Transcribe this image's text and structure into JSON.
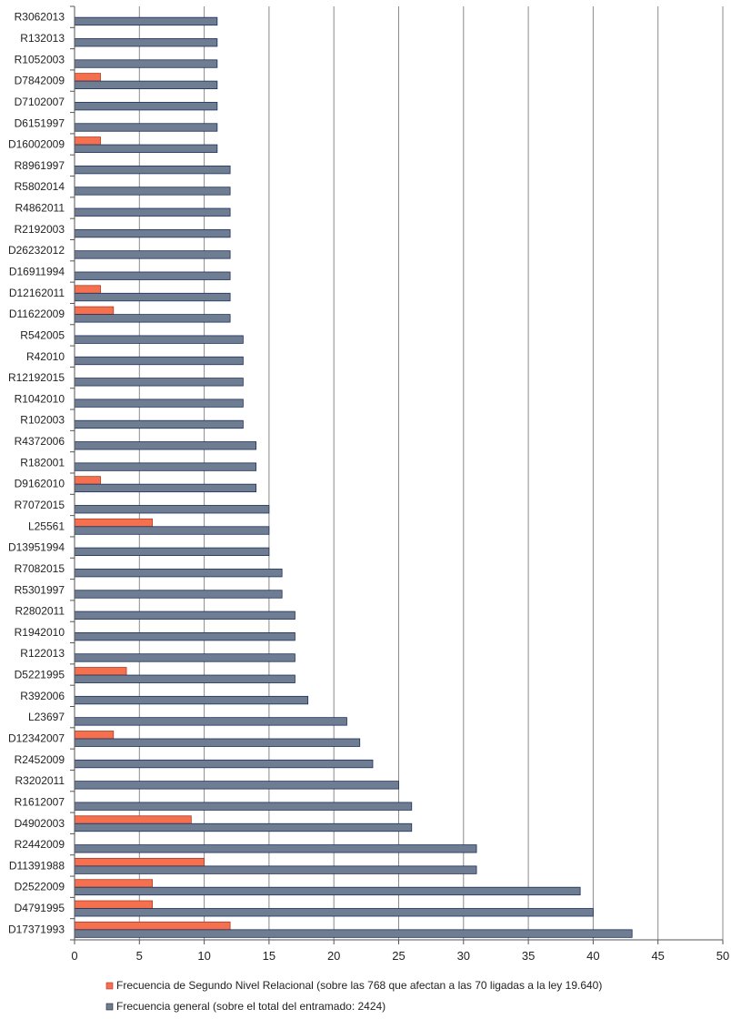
{
  "chart_data": {
    "type": "bar",
    "orientation": "horizontal",
    "title": "",
    "xlabel": "",
    "ylabel": "",
    "xlim": [
      0,
      50
    ],
    "xticks": [
      0,
      5,
      10,
      15,
      20,
      25,
      30,
      35,
      40,
      45,
      50
    ],
    "grid": true,
    "legend_position": "bottom",
    "categories": [
      "R3062013",
      "R132013",
      "R1052003",
      "D7842009",
      "D7102007",
      "D6151997",
      "D16002009",
      "R8961997",
      "R5802014",
      "R4862011",
      "R2192003",
      "D26232012",
      "D16911994",
      "D12162011",
      "D11622009",
      "R542005",
      "R42010",
      "R12192015",
      "R1042010",
      "R102003",
      "R4372006",
      "R182001",
      "D9162010",
      "R7072015",
      "L25561",
      "D13951994",
      "R7082015",
      "R5301997",
      "R2802011",
      "R1942010",
      "R122013",
      "D5221995",
      "R392006",
      "L23697",
      "D12342007",
      "R2452009",
      "R3202011",
      "R1612007",
      "D4902003",
      "R2442009",
      "D11391988",
      "D2522009",
      "D4791995",
      "D17371993"
    ],
    "series": [
      {
        "name": "Frecuencia de Segundo Nivel Relacional (sobre las 768 que afectan a las 70 ligadas a la  ley 19.640)",
        "color": "#f5704e",
        "values": [
          0,
          0,
          0,
          2,
          0,
          0,
          2,
          0,
          0,
          0,
          0,
          0,
          0,
          2,
          3,
          0,
          0,
          0,
          0,
          0,
          0,
          0,
          2,
          0,
          6,
          0,
          0,
          0,
          0,
          0,
          0,
          4,
          0,
          0,
          3,
          0,
          0,
          0,
          9,
          0,
          10,
          6,
          6,
          12
        ]
      },
      {
        "name": "Frecuencia  general (sobre el total del entramado: 2424)",
        "color": "#6e7d92",
        "values": [
          11,
          11,
          11,
          11,
          11,
          11,
          11,
          12,
          12,
          12,
          12,
          12,
          12,
          12,
          12,
          13,
          13,
          13,
          13,
          13,
          14,
          14,
          14,
          15,
          15,
          15,
          16,
          16,
          17,
          17,
          17,
          17,
          18,
          21,
          22,
          23,
          25,
          26,
          26,
          31,
          31,
          39,
          40,
          43
        ]
      }
    ]
  }
}
